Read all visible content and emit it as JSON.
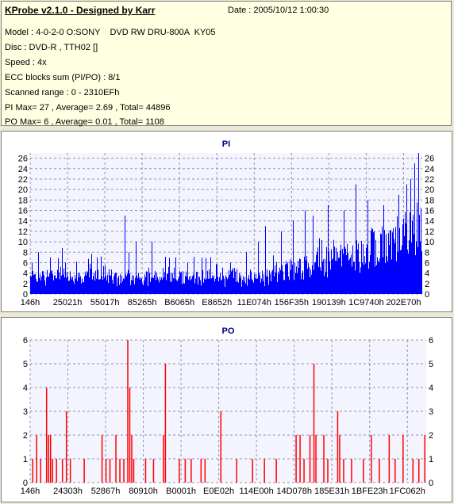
{
  "header": {
    "title": "KProbe v2.1.0 - Designed by Karr",
    "date": "Date : 2005/10/12 1:00:30",
    "lines": [
      "Model : 4-0-2-0 O:SONY    DVD RW DRU-800A  KY05",
      "Disc : DVD-R , TTH02 []",
      "Speed : 4x",
      "ECC blocks sum (PI/PO) : 8/1",
      "Scanned range : 0 - 2310EFh",
      "PI Max= 27 , Average= 2.69 , Total= 44896",
      "PO Max= 6 , Average= 0.01 , Total= 1108"
    ]
  },
  "colors": {
    "pi": "#0000ff",
    "po": "#ff0000",
    "title": "#000080",
    "plot_bg": "#f4f4ff"
  },
  "chart_data": [
    {
      "type": "bar",
      "title": "PI",
      "ylim": [
        0,
        27
      ],
      "yticks": [
        0,
        2,
        4,
        6,
        8,
        10,
        12,
        14,
        16,
        18,
        20,
        22,
        24,
        26
      ],
      "xticks": [
        "146h",
        "25021h",
        "55017h",
        "85265h",
        "B6065h",
        "E8652h",
        "11E074h",
        "156F35h",
        "190139h",
        "1C9740h",
        "202E70h"
      ],
      "grid": true,
      "baseline_profile": [
        [
          0,
          2
        ],
        [
          0.55,
          2
        ],
        [
          0.65,
          3
        ],
        [
          0.75,
          5
        ],
        [
          0.85,
          6
        ],
        [
          0.95,
          9
        ],
        [
          1.0,
          11
        ]
      ],
      "spikes": [
        [
          0.02,
          8
        ],
        [
          0.05,
          7
        ],
        [
          0.09,
          6
        ],
        [
          0.17,
          7
        ],
        [
          0.25,
          8
        ],
        [
          0.27,
          10
        ],
        [
          0.31,
          10
        ],
        [
          0.24,
          15
        ],
        [
          0.37,
          7
        ],
        [
          0.4,
          6
        ],
        [
          0.46,
          7
        ],
        [
          0.51,
          6
        ],
        [
          0.55,
          8
        ],
        [
          0.58,
          10
        ],
        [
          0.6,
          13
        ],
        [
          0.64,
          12
        ],
        [
          0.67,
          14
        ],
        [
          0.7,
          16
        ],
        [
          0.72,
          15
        ],
        [
          0.76,
          17
        ],
        [
          0.8,
          16
        ],
        [
          0.83,
          21
        ],
        [
          0.86,
          18
        ],
        [
          0.9,
          17
        ],
        [
          0.94,
          19
        ],
        [
          0.96,
          21
        ],
        [
          0.97,
          22
        ],
        [
          0.98,
          25
        ],
        [
          0.99,
          27
        ]
      ]
    },
    {
      "type": "bar",
      "title": "PO",
      "ylim": [
        0,
        6
      ],
      "yticks": [
        0,
        1,
        2,
        3,
        4,
        5,
        6
      ],
      "xticks": [
        "146h",
        "24303h",
        "52867h",
        "80910h",
        "B0001h",
        "E0E02h",
        "114E00h",
        "14D078h",
        "185E31h",
        "1BFE23h",
        "1FC062h"
      ],
      "grid": true,
      "bars": [
        [
          0.005,
          1
        ],
        [
          0.015,
          2
        ],
        [
          0.025,
          1
        ],
        [
          0.04,
          4
        ],
        [
          0.045,
          2
        ],
        [
          0.05,
          2
        ],
        [
          0.055,
          1
        ],
        [
          0.065,
          1
        ],
        [
          0.08,
          1
        ],
        [
          0.09,
          3
        ],
        [
          0.1,
          1
        ],
        [
          0.135,
          1
        ],
        [
          0.18,
          2
        ],
        [
          0.19,
          1
        ],
        [
          0.2,
          1
        ],
        [
          0.215,
          2
        ],
        [
          0.225,
          1
        ],
        [
          0.235,
          1
        ],
        [
          0.245,
          6
        ],
        [
          0.25,
          4
        ],
        [
          0.255,
          2
        ],
        [
          0.26,
          1
        ],
        [
          0.29,
          1
        ],
        [
          0.31,
          1
        ],
        [
          0.335,
          2
        ],
        [
          0.34,
          5
        ],
        [
          0.375,
          1
        ],
        [
          0.39,
          1
        ],
        [
          0.405,
          1
        ],
        [
          0.43,
          1
        ],
        [
          0.44,
          1
        ],
        [
          0.48,
          3
        ],
        [
          0.52,
          1
        ],
        [
          0.56,
          1
        ],
        [
          0.59,
          1
        ],
        [
          0.62,
          1
        ],
        [
          0.67,
          2
        ],
        [
          0.68,
          2
        ],
        [
          0.69,
          1
        ],
        [
          0.705,
          2
        ],
        [
          0.715,
          5
        ],
        [
          0.72,
          2
        ],
        [
          0.74,
          2
        ],
        [
          0.75,
          1
        ],
        [
          0.775,
          3
        ],
        [
          0.78,
          2
        ],
        [
          0.79,
          1
        ],
        [
          0.81,
          1
        ],
        [
          0.84,
          1
        ],
        [
          0.86,
          2
        ],
        [
          0.88,
          1
        ],
        [
          0.905,
          2
        ],
        [
          0.92,
          1
        ],
        [
          0.94,
          2
        ],
        [
          0.965,
          1
        ],
        [
          0.98,
          1
        ],
        [
          0.995,
          2
        ]
      ]
    }
  ]
}
